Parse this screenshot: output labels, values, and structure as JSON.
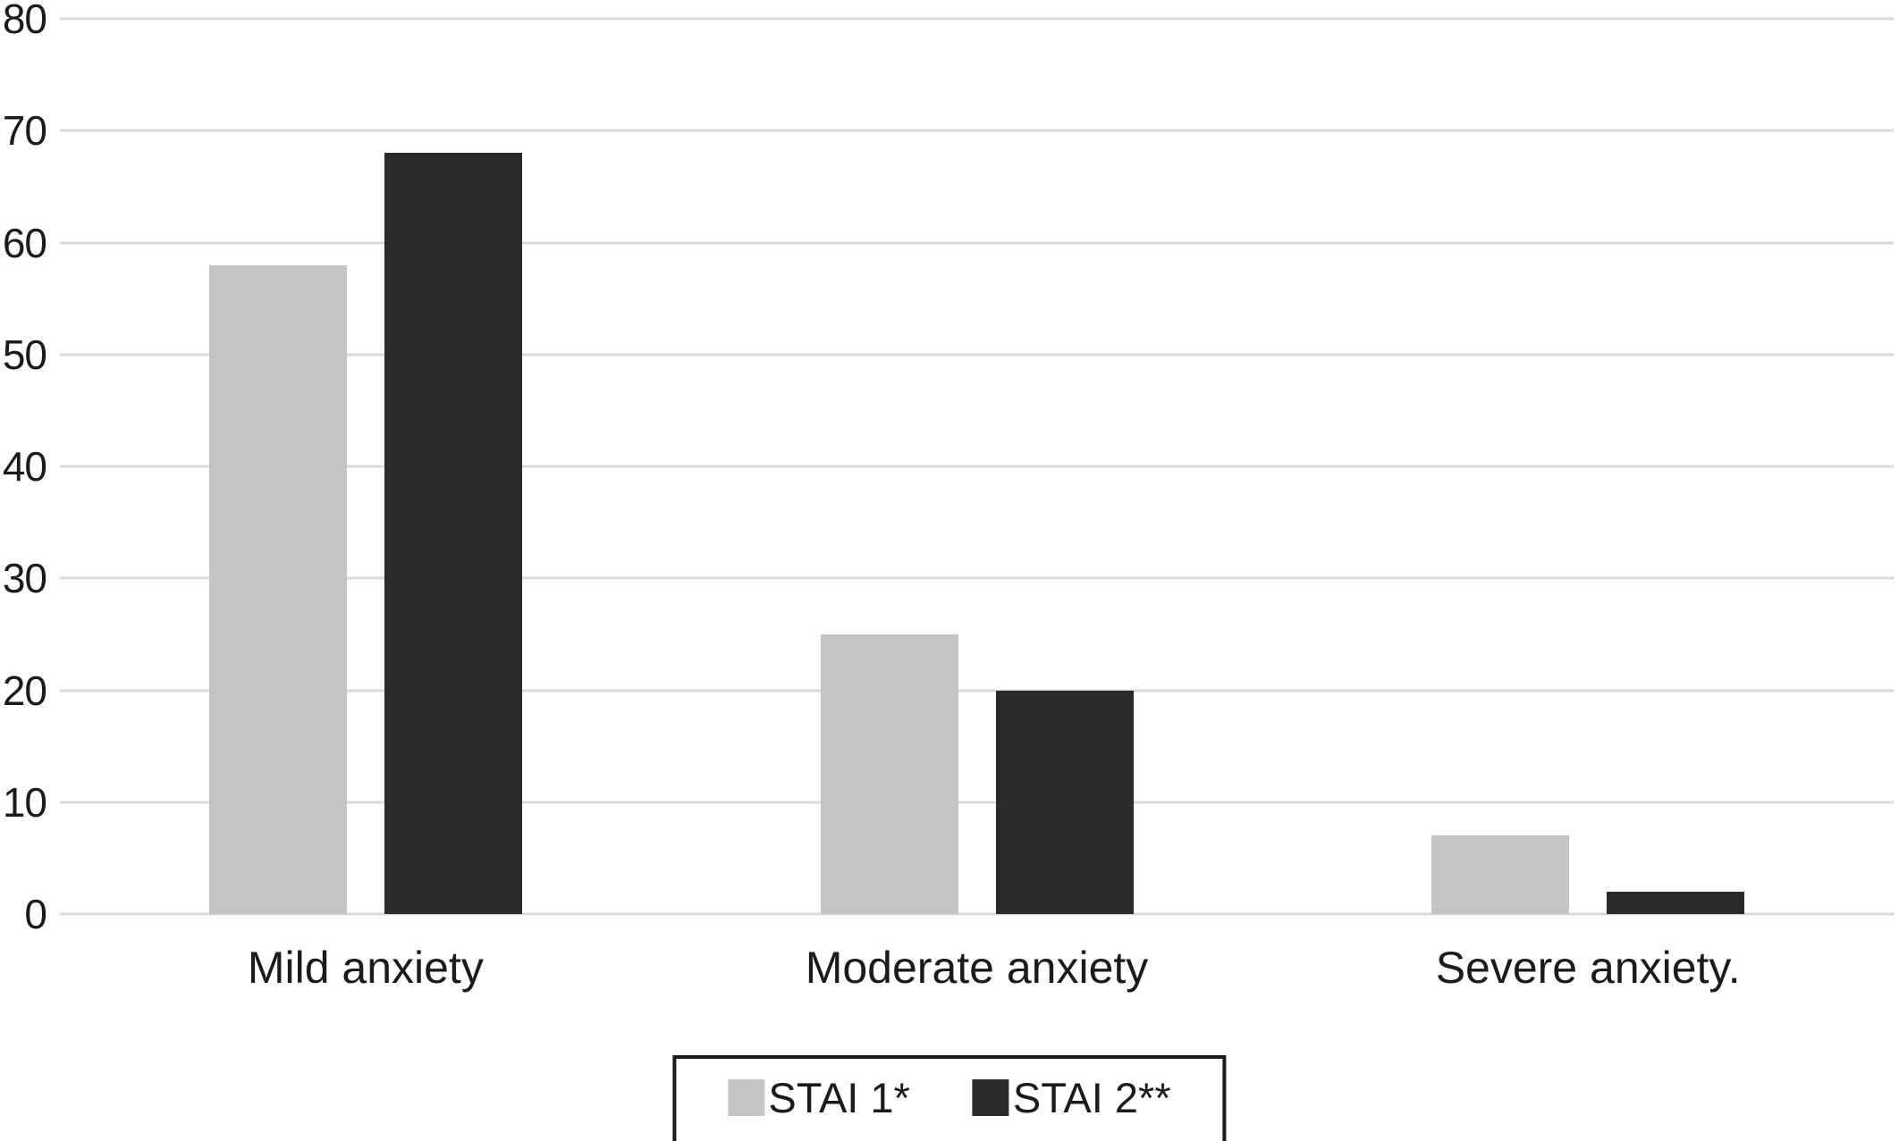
{
  "chart_data": {
    "type": "bar",
    "title": "",
    "xlabel": "",
    "ylabel": "",
    "categories": [
      "Mild anxiety",
      "Moderate anxiety",
      "Severe anxiety."
    ],
    "series": [
      {
        "name": "STAI 1*",
        "color": "#c4c4c4",
        "values": [
          58,
          25,
          7
        ]
      },
      {
        "name": "STAI 2**",
        "color": "#2a2a2a",
        "values": [
          68,
          20,
          2
        ]
      }
    ],
    "ylim": [
      0,
      80
    ],
    "ytick_step": 10,
    "yticks": [
      "0",
      "10",
      "20",
      "30",
      "40",
      "50",
      "60",
      "70",
      "80"
    ],
    "grid": true,
    "legend_position": "bottom-center"
  },
  "colors": {
    "background": "#ffffff",
    "gridline": "#d9d9d9",
    "text": "#1b1b1b",
    "legend_border": "#1a1a1a",
    "series1": "#c4c4c4",
    "series2": "#2a2a2a"
  }
}
